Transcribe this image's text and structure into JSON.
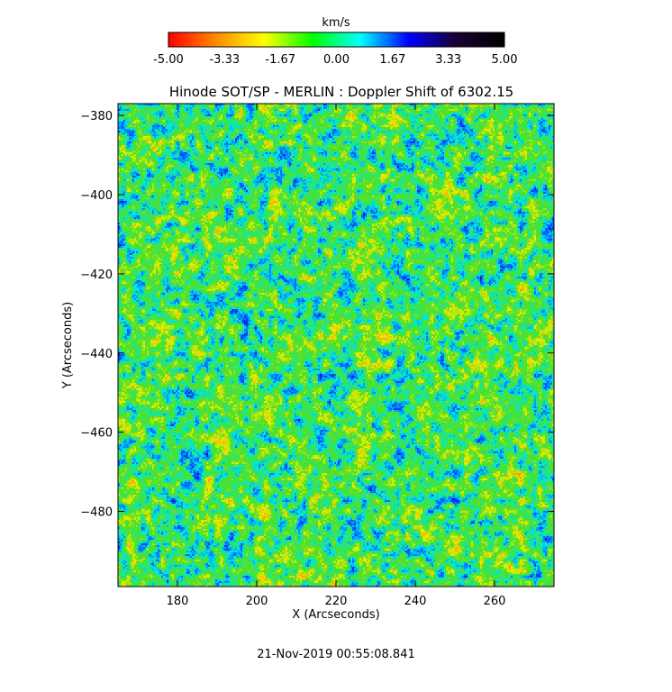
{
  "chart_data": {
    "type": "heatmap",
    "title": "Hinode SOT/SP - MERLIN : Doppler Shift of 6302.15",
    "xlabel": "X (Arcseconds)",
    "ylabel": "Y (Arcseconds)",
    "xlim": [
      165,
      275
    ],
    "ylim": [
      -499,
      -377
    ],
    "x_ticks": [
      180,
      200,
      220,
      240,
      260
    ],
    "y_ticks": [
      -380,
      -400,
      -420,
      -440,
      -460,
      -480
    ],
    "grid": false,
    "value_range_kms": [
      -5.0,
      5.0
    ],
    "field_summary": "Mottled Doppler velocity field dominated by values near 0 km/s (green/cyan), with scattered redshift patches up to about +3 km/s (blue/dark) and blueshift patches near -2 km/s (yellow).",
    "colorbar": {
      "label": "km/s",
      "placement": "top",
      "min": -5.0,
      "max": 5.0,
      "tick_labels": [
        "-5.00",
        "-3.33",
        "-1.67",
        "0.00",
        "1.67",
        "3.33",
        "5.00"
      ],
      "colors": [
        "#ff0000",
        "#ff8c00",
        "#ffff00",
        "#00ff00",
        "#00ffff",
        "#0000ff",
        "#1a0033",
        "#000000"
      ]
    },
    "footer": "21-Nov-2019 00:55:08.841"
  }
}
